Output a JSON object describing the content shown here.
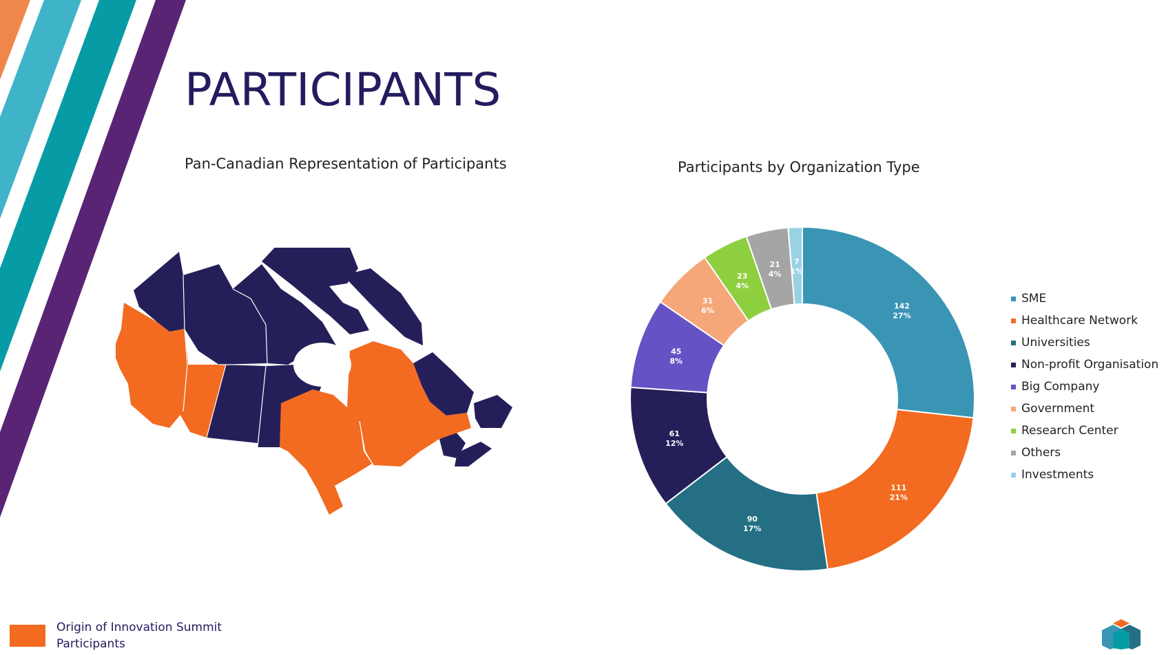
{
  "page": {
    "title": "PARTICIPANTS",
    "map_title": "Pan-Canadian Representation of Participants",
    "chart_title": "Participants by Organization Type"
  },
  "footer": {
    "legend_line1": "Origin of Innovation Summit",
    "legend_line2": "Participants",
    "legend_color": "#f26b21"
  },
  "colors": {
    "title": "#231c5e",
    "stripe_orange": "#f0874a",
    "stripe_light_teal": "#3fb4c8",
    "stripe_teal": "#079ca5",
    "stripe_purple": "#5a2474",
    "map_dark": "#251f59",
    "map_orange": "#f26b21"
  },
  "map": {
    "highlighted_provinces": [
      "British Columbia",
      "Alberta",
      "Ontario",
      "Quebec"
    ],
    "other_provinces": [
      "Yukon",
      "Northwest Territories",
      "Nunavut",
      "Saskatchewan",
      "Manitoba",
      "Newfoundland and Labrador",
      "New Brunswick",
      "Nova Scotia",
      "Prince Edward Island"
    ]
  },
  "chart_data": {
    "type": "pie",
    "style": "donut",
    "title": "Participants by Organization Type",
    "legend_position": "right",
    "categories": [
      "SME",
      "Healthcare Network",
      "Universities",
      "Non-profit Organisation",
      "Big Company",
      "Government",
      "Research Center",
      "Others",
      "Investments"
    ],
    "values": [
      142,
      111,
      90,
      61,
      45,
      31,
      23,
      21,
      7
    ],
    "percent_labels": [
      "27%",
      "21%",
      "17%",
      "12%",
      "8%",
      "6%",
      "4%",
      "4%",
      "1%"
    ],
    "colors": [
      "#3a95b5",
      "#f26b21",
      "#246f84",
      "#251f59",
      "#6652c4",
      "#f5a77a",
      "#8ecf3f",
      "#a5a5a5",
      "#99d3e3"
    ]
  },
  "icons": {
    "logo": "stacked-cubes-logo"
  }
}
